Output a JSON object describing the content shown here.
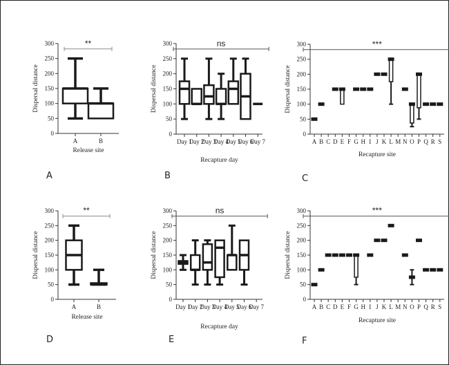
{
  "figure": {
    "border_color": "#222222",
    "box_fill": "#ffffff",
    "box_stroke": "#1a1a1a",
    "sig_bar_color": "#888888"
  },
  "chart_data": [
    {
      "id": "A",
      "panel_label": "A",
      "type": "box",
      "xlabel": "Release site",
      "ylabel": "Dispersal distance",
      "ylim": [
        0,
        300
      ],
      "yticks": [
        0,
        50,
        100,
        150,
        200,
        250,
        300
      ],
      "significance": "**",
      "x_rotated": false,
      "categories": [
        "A",
        "B"
      ],
      "boxes": [
        {
          "min": 50,
          "q1": 100,
          "median": 150,
          "q3": 150,
          "max": 250
        },
        {
          "min": 50,
          "q1": 50,
          "median": 100,
          "q3": 100,
          "max": 150
        }
      ]
    },
    {
      "id": "B",
      "panel_label": "B",
      "type": "box",
      "xlabel": "Recapture day",
      "ylabel": "Dispersal distance",
      "ylim": [
        0,
        300
      ],
      "yticks": [
        0,
        50,
        100,
        150,
        200,
        250,
        300
      ],
      "significance": "ns",
      "x_rotated": true,
      "categories": [
        "Day 1",
        "Day 2",
        "Day 3",
        "Day 4",
        "Day 5",
        "Day 6",
        "Day 7"
      ],
      "boxes": [
        {
          "min": 50,
          "q1": 100,
          "median": 150,
          "q3": 175,
          "max": 250
        },
        {
          "min": 100,
          "q1": 100,
          "median": 100,
          "q3": 150,
          "max": 150
        },
        {
          "min": 50,
          "q1": 100,
          "median": 125,
          "q3": 162,
          "max": 250
        },
        {
          "min": 50,
          "q1": 100,
          "median": 100,
          "q3": 150,
          "max": 200
        },
        {
          "min": 100,
          "q1": 100,
          "median": 150,
          "q3": 175,
          "max": 250
        },
        {
          "min": 50,
          "q1": 50,
          "median": 125,
          "q3": 200,
          "max": 250
        },
        {
          "min": 100,
          "q1": 100,
          "median": 100,
          "q3": 100,
          "max": 100
        }
      ]
    },
    {
      "id": "C",
      "panel_label": "C",
      "type": "box",
      "xlabel": "Recapture site",
      "ylabel": "Dispersal distance",
      "ylim": [
        0,
        300
      ],
      "yticks": [
        0,
        50,
        100,
        150,
        200,
        250,
        300
      ],
      "significance": "***",
      "x_rotated": true,
      "categories": [
        "A",
        "B",
        "C",
        "D",
        "E",
        "F",
        "G",
        "H",
        "I",
        "J",
        "K",
        "L",
        "M",
        "N",
        "O",
        "P",
        "Q",
        "R",
        "S"
      ],
      "boxes": [
        {
          "min": 50,
          "q1": 50,
          "median": 50,
          "q3": 50,
          "max": 50
        },
        {
          "min": 100,
          "q1": 100,
          "median": 100,
          "q3": 100,
          "max": 100
        },
        null,
        {
          "min": 150,
          "q1": 150,
          "median": 150,
          "q3": 150,
          "max": 150
        },
        {
          "min": 100,
          "q1": 100,
          "median": 150,
          "q3": 150,
          "max": 150
        },
        null,
        {
          "min": 150,
          "q1": 150,
          "median": 150,
          "q3": 150,
          "max": 150
        },
        {
          "min": 150,
          "q1": 150,
          "median": 150,
          "q3": 150,
          "max": 150
        },
        {
          "min": 150,
          "q1": 150,
          "median": 150,
          "q3": 150,
          "max": 150
        },
        {
          "min": 200,
          "q1": 200,
          "median": 200,
          "q3": 200,
          "max": 200
        },
        {
          "min": 200,
          "q1": 200,
          "median": 200,
          "q3": 200,
          "max": 200
        },
        {
          "min": 100,
          "q1": 175,
          "median": 250,
          "q3": 250,
          "max": 250
        },
        null,
        {
          "min": 150,
          "q1": 150,
          "median": 150,
          "q3": 150,
          "max": 150
        },
        {
          "min": 25,
          "q1": 37,
          "median": 100,
          "q3": 100,
          "max": 100
        },
        {
          "min": 50,
          "q1": 88,
          "median": 200,
          "q3": 200,
          "max": 200
        },
        {
          "min": 100,
          "q1": 100,
          "median": 100,
          "q3": 100,
          "max": 100
        },
        {
          "min": 100,
          "q1": 100,
          "median": 100,
          "q3": 100,
          "max": 100
        },
        {
          "min": 100,
          "q1": 100,
          "median": 100,
          "q3": 100,
          "max": 100
        }
      ]
    },
    {
      "id": "D",
      "panel_label": "D",
      "type": "box",
      "xlabel": "Release site",
      "ylabel": "Dispersal distance",
      "ylim": [
        0,
        300
      ],
      "yticks": [
        0,
        50,
        100,
        150,
        200,
        250,
        300
      ],
      "significance": "**",
      "x_rotated": false,
      "categories": [
        "A",
        "B"
      ],
      "boxes": [
        {
          "min": 50,
          "q1": 100,
          "median": 150,
          "q3": 200,
          "max": 250
        },
        {
          "min": 50,
          "q1": 50,
          "median": 50,
          "q3": 55,
          "max": 100
        }
      ]
    },
    {
      "id": "E",
      "panel_label": "E",
      "type": "box",
      "xlabel": "Recapture day",
      "ylabel": "Dispersal distance",
      "ylim": [
        0,
        300
      ],
      "yticks": [
        0,
        50,
        100,
        150,
        200,
        250,
        300
      ],
      "significance": "ns",
      "x_rotated": true,
      "categories": [
        "Day 1",
        "Day 2",
        "Day 3",
        "Day 4",
        "Day 5",
        "Day 6",
        "Day 7"
      ],
      "boxes": [
        {
          "min": 100,
          "q1": 120,
          "median": 125,
          "q3": 130,
          "max": 150
        },
        {
          "min": 50,
          "q1": 100,
          "median": 100,
          "q3": 150,
          "max": 200
        },
        {
          "min": 50,
          "q1": 100,
          "median": 125,
          "q3": 187,
          "max": 200
        },
        {
          "min": 50,
          "q1": 75,
          "median": 175,
          "q3": 200,
          "max": 200
        },
        {
          "min": 100,
          "q1": 100,
          "median": 150,
          "q3": 150,
          "max": 250
        },
        {
          "min": 50,
          "q1": 100,
          "median": 150,
          "q3": 200,
          "max": 200
        },
        null
      ]
    },
    {
      "id": "F",
      "panel_label": "F",
      "type": "box",
      "xlabel": "Recapture site",
      "ylabel": "Dispersal distance",
      "ylim": [
        0,
        300
      ],
      "yticks": [
        0,
        50,
        100,
        150,
        200,
        250,
        300
      ],
      "significance": "***",
      "x_rotated": true,
      "categories": [
        "A",
        "B",
        "C",
        "D",
        "E",
        "F",
        "G",
        "H",
        "I",
        "J",
        "K",
        "L",
        "M",
        "N",
        "O",
        "P",
        "Q",
        "R",
        "S"
      ],
      "boxes": [
        {
          "min": 50,
          "q1": 50,
          "median": 50,
          "q3": 50,
          "max": 50
        },
        {
          "min": 100,
          "q1": 100,
          "median": 100,
          "q3": 100,
          "max": 100
        },
        {
          "min": 150,
          "q1": 150,
          "median": 150,
          "q3": 150,
          "max": 150
        },
        {
          "min": 150,
          "q1": 150,
          "median": 150,
          "q3": 150,
          "max": 150
        },
        {
          "min": 150,
          "q1": 150,
          "median": 150,
          "q3": 150,
          "max": 150
        },
        {
          "min": 150,
          "q1": 150,
          "median": 150,
          "q3": 150,
          "max": 150
        },
        {
          "min": 50,
          "q1": 75,
          "median": 150,
          "q3": 150,
          "max": 150
        },
        null,
        {
          "min": 150,
          "q1": 150,
          "median": 150,
          "q3": 150,
          "max": 150
        },
        {
          "min": 200,
          "q1": 200,
          "median": 200,
          "q3": 200,
          "max": 200
        },
        {
          "min": 200,
          "q1": 200,
          "median": 200,
          "q3": 200,
          "max": 200
        },
        {
          "min": 250,
          "q1": 250,
          "median": 250,
          "q3": 250,
          "max": 250
        },
        null,
        {
          "min": 150,
          "q1": 150,
          "median": 150,
          "q3": 150,
          "max": 150
        },
        {
          "min": 50,
          "q1": 75,
          "median": 75,
          "q3": 75,
          "max": 100
        },
        {
          "min": 200,
          "q1": 200,
          "median": 200,
          "q3": 200,
          "max": 200
        },
        {
          "min": 100,
          "q1": 100,
          "median": 100,
          "q3": 100,
          "max": 100
        },
        {
          "min": 100,
          "q1": 100,
          "median": 100,
          "q3": 100,
          "max": 100
        },
        {
          "min": 100,
          "q1": 100,
          "median": 100,
          "q3": 100,
          "max": 100
        }
      ]
    }
  ]
}
